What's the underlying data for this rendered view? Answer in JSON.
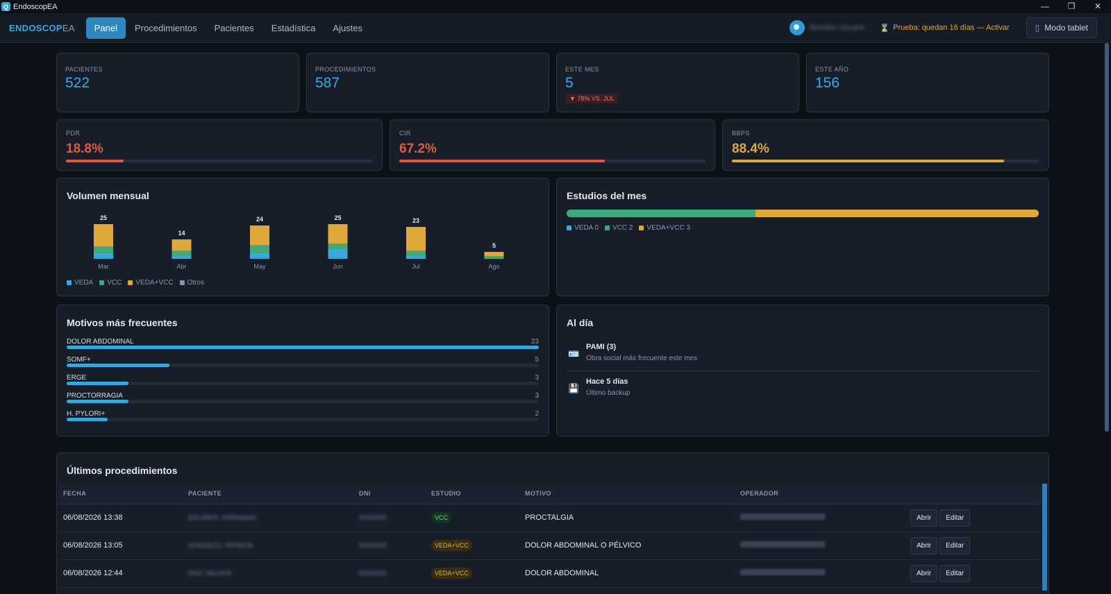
{
  "window": {
    "title": "EndoscopEA",
    "controls": [
      "—",
      "❐",
      "✕"
    ]
  },
  "brand": {
    "main": "ENDOSCOP",
    "suffix": "EA"
  },
  "nav": {
    "items": [
      {
        "label": "Panel",
        "active": true
      },
      {
        "label": "Procedimientos",
        "active": false
      },
      {
        "label": "Pacientes",
        "active": false
      },
      {
        "label": "Estadística",
        "active": false
      },
      {
        "label": "Ajustes",
        "active": false
      }
    ]
  },
  "user": {
    "name": "Nombre Usuario"
  },
  "trial": {
    "icon": "⌛",
    "text": "Prueba: quedan 16 días — Activar"
  },
  "tablet": {
    "icon": "▯",
    "label": "Modo tablet"
  },
  "stats": [
    {
      "label": "PACIENTES",
      "value": "522"
    },
    {
      "label": "PROCEDIMIENTOS",
      "value": "587"
    },
    {
      "label": "ESTE MES",
      "value": "5",
      "delta": "▼ 78% VS. JUL"
    },
    {
      "label": "ESTE AÑO",
      "value": "156"
    }
  ],
  "rates": [
    {
      "label": "PDR",
      "value": "18.8%",
      "fraction": 0.188,
      "color": "#e05a3e"
    },
    {
      "label": "CIR",
      "value": "67.2%",
      "fraction": 0.672,
      "color": "#e05a3e"
    },
    {
      "label": "BBPS",
      "value": "88.4%",
      "fraction": 0.884,
      "color": "#e0a83a"
    }
  ],
  "monthly": {
    "title": "Volumen mensual",
    "legend": [
      {
        "label": "VEDA",
        "color": "#3ba8dc"
      },
      {
        "label": "VCC",
        "color": "#3ea97a"
      },
      {
        "label": "VEDA+VCC",
        "color": "#e0a83a"
      },
      {
        "label": "Otros",
        "color": "#8a96a8"
      }
    ]
  },
  "chart_data": {
    "type": "bar",
    "stacked": true,
    "categories": [
      "Mar",
      "Abr",
      "May",
      "Jun",
      "Jul",
      "Ago"
    ],
    "totals": [
      25,
      14,
      24,
      25,
      23,
      5
    ],
    "series": [
      {
        "name": "VEDA",
        "values": [
          4,
          2,
          4,
          7,
          2,
          0
        ]
      },
      {
        "name": "VCC",
        "values": [
          5,
          4,
          6,
          4,
          4,
          2
        ]
      },
      {
        "name": "VEDA+VCC",
        "values": [
          16,
          8,
          14,
          14,
          17,
          3
        ]
      },
      {
        "name": "Otros",
        "values": [
          0,
          0,
          0,
          0,
          0,
          0
        ]
      }
    ],
    "ylim": [
      0,
      25
    ]
  },
  "estudios": {
    "title": "Estudios del mes",
    "segments": [
      {
        "label": "VEDA 0",
        "value": 0,
        "color": "#3ba8dc"
      },
      {
        "label": "VCC 2",
        "value": 2,
        "color": "#3ea97a"
      },
      {
        "label": "VEDA+VCC 3",
        "value": 3,
        "color": "#e0a83a"
      }
    ]
  },
  "motivos": {
    "title": "Motivos más frecuentes",
    "max": 23,
    "items": [
      {
        "label": "DOLOR ABDOMINAL",
        "count": 23
      },
      {
        "label": "SOMF+",
        "count": 5
      },
      {
        "label": "ERGE",
        "count": 3
      },
      {
        "label": "PROCTORRAGIA",
        "count": 3
      },
      {
        "label": "H. PYLORI+",
        "count": 2
      }
    ]
  },
  "alday": {
    "title": "Al día",
    "items": [
      {
        "icon": "🪪",
        "title": "PAMI (3)",
        "sub": "Obra social más frecuente este mes"
      },
      {
        "icon": "💾",
        "title": "Hace 5 días",
        "sub": "Último backup"
      }
    ]
  },
  "ultimos": {
    "title": "Últimos procedimientos",
    "headers": [
      "FECHA",
      "PACIENTE",
      "DNI",
      "ESTUDIO",
      "MOTIVO",
      "OPERADOR"
    ],
    "open_label": "Abrir",
    "edit_label": "Editar",
    "rows": [
      {
        "fecha": "06/08/2026 13:38",
        "paciente": "BOLAÑOS, FERNANDA",
        "dni": "00000000",
        "estudio": "VCC",
        "motivo": "PROCTALGIA"
      },
      {
        "fecha": "06/08/2026 13:05",
        "paciente": "GONZALEZ, PATRICIA",
        "dni": "00000000",
        "estudio": "VEDA+VCC",
        "motivo": "DOLOR ABDOMINAL O PÉLVICO"
      },
      {
        "fecha": "06/08/2026 12:44",
        "paciente": "DIAZ, NELSON",
        "dni": "00000000",
        "estudio": "VEDA+VCC",
        "motivo": "DOLOR ABDOMINAL"
      }
    ]
  }
}
